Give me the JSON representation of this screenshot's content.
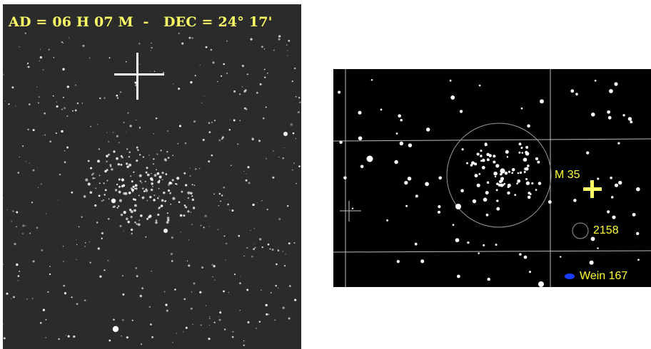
{
  "photo": {
    "coords_label": "AD = 06 H 07 M  -   DEC = 24° 17'"
  },
  "chart": {
    "labels": {
      "m35": "M 35",
      "ngc2158": "2158",
      "wein167": "Wein 167"
    }
  },
  "colors": {
    "photo_background": "#2b2b2b",
    "coords_text": "#ffff66",
    "chart_background": "#000000",
    "chart_grid": "#bdbdbd",
    "chart_label": "#ffff33",
    "marker_cross": "#ffff66",
    "wein_marker": "#1a3cff"
  },
  "icons": {
    "photo_center": "crosshair-icon",
    "chart_position": "plus-marker-icon",
    "chart_telescope": "crosshair-icon",
    "wein167_marker": "ellipse-marker-icon"
  }
}
